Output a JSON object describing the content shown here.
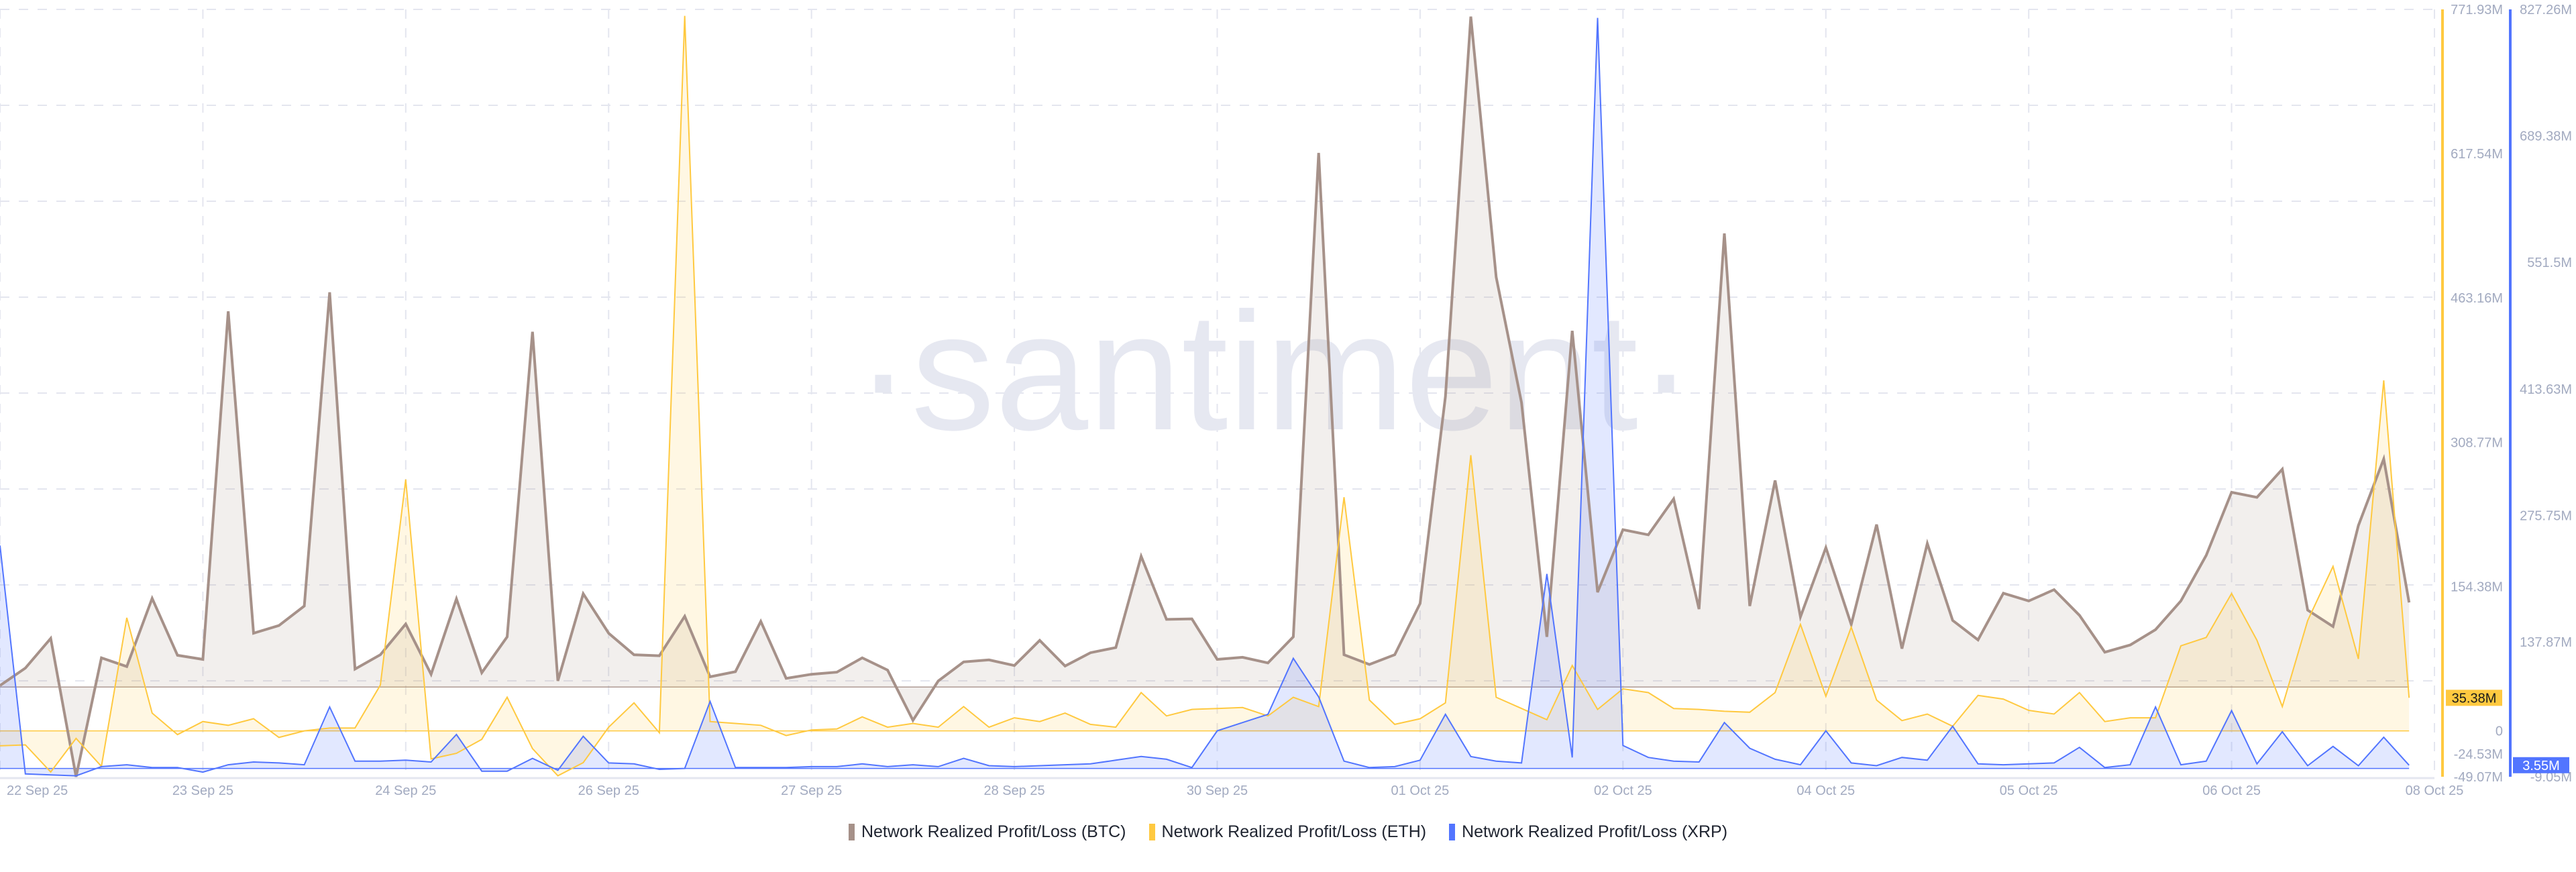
{
  "chart_data": {
    "type": "area",
    "watermark": "·santiment·",
    "x_ticks": [
      {
        "index": 0,
        "label": "22 Sep 25"
      },
      {
        "index": 8,
        "label": "23 Sep 25"
      },
      {
        "index": 16,
        "label": "24 Sep 25"
      },
      {
        "index": 24,
        "label": "26 Sep 25"
      },
      {
        "index": 32,
        "label": "27 Sep 25"
      },
      {
        "index": 40,
        "label": "28 Sep 25"
      },
      {
        "index": 48,
        "label": "30 Sep 25"
      },
      {
        "index": 56,
        "label": "01 Oct 25"
      },
      {
        "index": 64,
        "label": "02 Oct 25"
      },
      {
        "index": 72,
        "label": "04 Oct 25"
      },
      {
        "index": 80,
        "label": "05 Oct 25"
      },
      {
        "index": 88,
        "label": "06 Oct 25"
      },
      {
        "index": 96,
        "label": "08 Oct 25"
      }
    ],
    "x_range": [
      0,
      96
    ],
    "grid": true,
    "legend_position": "bottom",
    "series": [
      {
        "name": "Network Realized Profit/Loss (BTC)",
        "color": "#a69189",
        "axis": "hidden",
        "ylim": [
          -87.5,
          661
        ],
        "values": [
          1.5,
          18.5,
          47.5,
          -87.5,
          28.5,
          20,
          86.5,
          31,
          27,
          366.5,
          52.5,
          60,
          79,
          385,
          17.5,
          31.5,
          61.5,
          12.5,
          86,
          14,
          49,
          346.5,
          6,
          91,
          52.5,
          31.5,
          30.5,
          69,
          10,
          15,
          64,
          8.5,
          12.5,
          14.5,
          28.5,
          16.5,
          -32.5,
          6,
          24.5,
          26.5,
          21,
          45.5,
          20.5,
          33.5,
          38.5,
          127.5,
          66,
          66.5,
          27,
          29,
          23.5,
          49,
          521,
          31.5,
          22,
          31.5,
          81.5,
          283.5,
          654,
          400,
          277.5,
          49,
          347.5,
          92.5,
          153.5,
          148.5,
          183.5,
          76,
          442.5,
          79,
          201.5,
          68.5,
          136,
          61,
          158.5,
          37.5,
          140,
          65,
          46,
          91.5,
          84,
          95,
          70,
          34,
          41,
          56,
          84,
          128.5,
          190,
          185,
          212.5,
          75,
          59,
          157.5,
          222.5,
          82.5
        ]
      },
      {
        "name": "Network Realized Profit/Loss (ETH)",
        "color": "#ffc940",
        "axis": "right-1",
        "ylim": [
          -49.07,
          771.93
        ],
        "ticks": [
          {
            "value": 771.93,
            "label": "771.93M"
          },
          {
            "value": 617.54,
            "label": "617.54M"
          },
          {
            "value": 463.16,
            "label": "463.16M"
          },
          {
            "value": 308.77,
            "label": "308.77M"
          },
          {
            "value": 154.38,
            "label": "154.38M"
          },
          {
            "value": 0,
            "label": "0"
          },
          {
            "value": -24.53,
            "label": "-24.53M"
          },
          {
            "value": -49.07,
            "label": "-49.07M"
          }
        ],
        "last_label": "35.38M",
        "values": [
          -16,
          -15,
          -44,
          -8,
          -38,
          121,
          19,
          -4,
          10,
          6,
          13,
          -7,
          0,
          3,
          3,
          49,
          269,
          -30,
          -24,
          -9,
          36,
          -19,
          -48,
          -34,
          4,
          30,
          -2,
          765,
          10,
          8,
          6,
          -5,
          1,
          2,
          15,
          4,
          8,
          4,
          26,
          4,
          14,
          10,
          19,
          7,
          4,
          41,
          16,
          23,
          24,
          25,
          16,
          36,
          26,
          250,
          33,
          7,
          13,
          30,
          295,
          36,
          24,
          12,
          70,
          23,
          45,
          41,
          24,
          23,
          21,
          20,
          41,
          114,
          37,
          111,
          33,
          11,
          18,
          5,
          38,
          34,
          22,
          18,
          41,
          10,
          14,
          14,
          91,
          100,
          147,
          97,
          26,
          118,
          176,
          77,
          375,
          35.38
        ]
      },
      {
        "name": "Network Realized Profit/Loss (XRP)",
        "color": "#5275ff",
        "axis": "right-2",
        "ylim": [
          -9.05,
          827.26
        ],
        "ticks": [
          {
            "value": 827.26,
            "label": "827.26M"
          },
          {
            "value": 689.38,
            "label": "689.38M"
          },
          {
            "value": 551.5,
            "label": "551.5M"
          },
          {
            "value": 413.63,
            "label": "413.63M"
          },
          {
            "value": 275.75,
            "label": "275.75M"
          },
          {
            "value": 137.87,
            "label": "137.87M"
          },
          {
            "value": -9.05,
            "label": "-9.05M"
          }
        ],
        "last_label": "3.55M",
        "values": [
          243,
          -6,
          -7,
          -8,
          2,
          4,
          1,
          1,
          -4,
          4,
          7,
          6,
          4,
          67,
          8,
          8,
          9,
          7,
          37,
          -3,
          -3,
          11,
          -2,
          35,
          6,
          5,
          -1,
          0,
          73,
          1,
          1,
          1,
          2,
          2,
          5,
          2,
          4,
          2,
          11,
          3,
          2,
          3,
          4,
          5,
          9,
          13,
          10,
          1,
          41,
          50,
          59,
          120,
          78,
          8,
          1,
          2,
          9,
          59,
          13,
          8,
          6,
          212,
          12,
          818,
          25,
          12,
          8,
          7,
          50,
          22,
          10,
          4,
          41,
          6,
          3,
          12,
          9,
          46,
          5,
          4,
          5,
          6,
          23,
          1,
          4,
          67,
          4,
          8,
          63,
          5,
          40,
          3,
          24,
          3,
          34,
          3.55
        ]
      }
    ]
  }
}
